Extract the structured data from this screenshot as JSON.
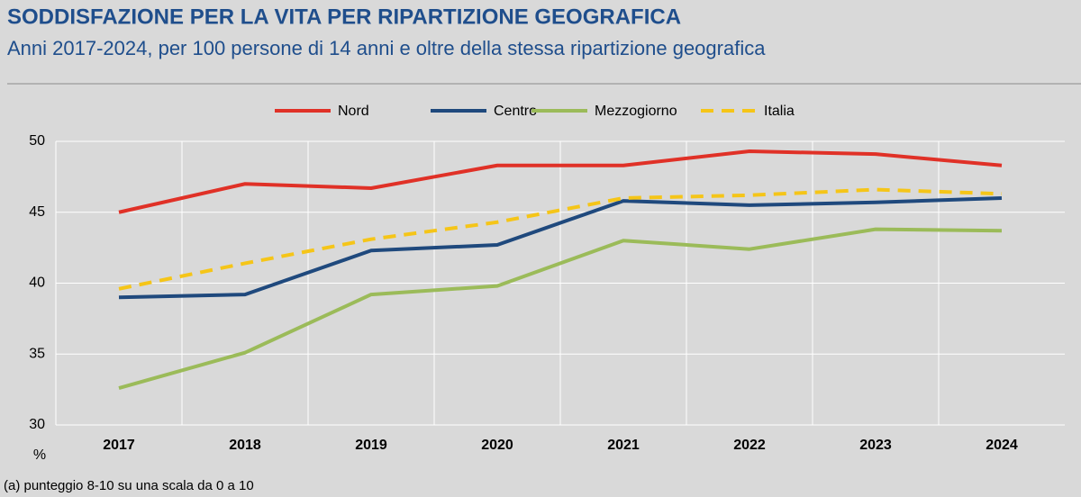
{
  "chart_data": {
    "type": "line",
    "title": "SODDISFAZIONE PER LA VITA PER RIPARTIZIONE GEOGRAFICA",
    "subtitle": "Anni 2017-2024, per 100 persone di 14 anni e oltre della stessa ripartizione geografica",
    "y_label": "%",
    "footnote": "(a) punteggio 8-10 su una scala da 0 a 10",
    "categories": [
      "2017",
      "2018",
      "2019",
      "2020",
      "2021",
      "2022",
      "2023",
      "2024"
    ],
    "series": [
      {
        "name": "Nord",
        "color": "#e03127",
        "dashed": false,
        "values": [
          45.0,
          47.0,
          46.7,
          48.3,
          48.3,
          49.3,
          49.1,
          48.3
        ]
      },
      {
        "name": "Centro",
        "color": "#1f497d",
        "dashed": false,
        "values": [
          39.0,
          39.2,
          42.3,
          42.7,
          45.8,
          45.5,
          45.7,
          46.0
        ]
      },
      {
        "name": "Mezzogiorno",
        "color": "#9bbb59",
        "dashed": false,
        "values": [
          32.6,
          35.1,
          39.2,
          39.8,
          43.0,
          42.4,
          43.8,
          43.7
        ]
      },
      {
        "name": "Italia",
        "color": "#f5c518",
        "dashed": true,
        "values": [
          39.6,
          41.4,
          43.1,
          44.3,
          46.0,
          46.2,
          46.6,
          46.3
        ]
      }
    ],
    "ylim": [
      30,
      50
    ],
    "yticks": [
      30,
      35,
      40,
      45,
      50
    ],
    "grid": true
  }
}
